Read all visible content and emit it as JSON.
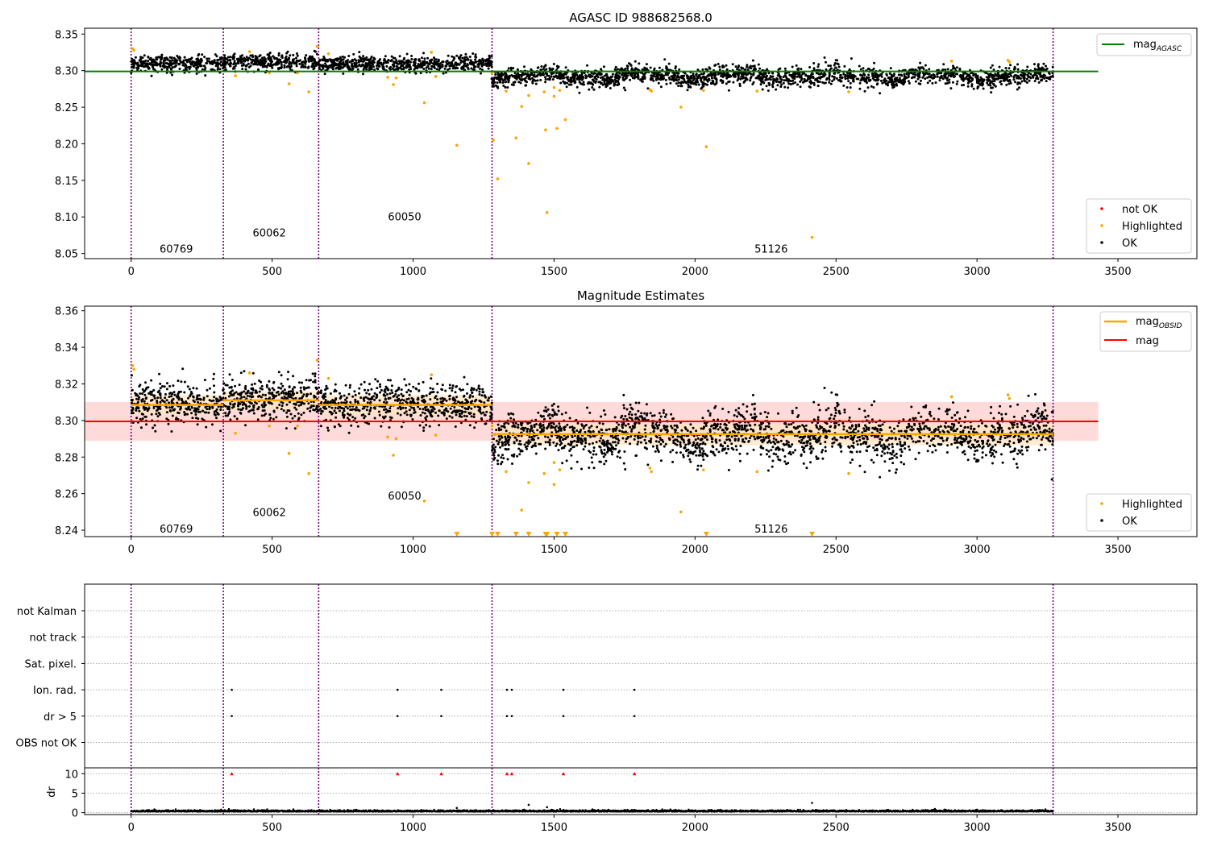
{
  "chart_data": [
    {
      "type": "scatter",
      "title": "AGASC ID 988682568.0",
      "xlim": [
        -165,
        3780
      ],
      "ylim": [
        8.043,
        8.358
      ],
      "xticks": [
        0,
        500,
        1000,
        1500,
        2000,
        2500,
        3000,
        3500
      ],
      "yticks": [
        8.05,
        8.1,
        8.15,
        8.2,
        8.25,
        8.3,
        8.35
      ],
      "obsid_boundaries": [
        0,
        327,
        665,
        1280,
        3270
      ],
      "obsid_labels": [
        {
          "text": "60769",
          "x": 160,
          "y": 8.057
        },
        {
          "text": "60062",
          "x": 490,
          "y": 8.079
        },
        {
          "text": "60050",
          "x": 970,
          "y": 8.101
        },
        {
          "text": "51126",
          "x": 2270,
          "y": 8.057
        }
      ],
      "reference_line": {
        "name": "mag",
        "subscript": "AGASC",
        "value": 8.299,
        "x": [
          -165,
          3430
        ]
      },
      "series": [
        {
          "name": "not OK",
          "color": "#ff0000",
          "points": []
        },
        {
          "name": "Highlighted",
          "color": "#ffa500",
          "points": [
            [
              5,
              8.33
            ],
            [
              10,
              8.328
            ],
            [
              370,
              8.293
            ],
            [
              420,
              8.326
            ],
            [
              490,
              8.297
            ],
            [
              560,
              8.282
            ],
            [
              590,
              8.297
            ],
            [
              630,
              8.271
            ],
            [
              660,
              8.333
            ],
            [
              700,
              8.323
            ],
            [
              910,
              8.291
            ],
            [
              930,
              8.281
            ],
            [
              940,
              8.29
            ],
            [
              1040,
              8.256
            ],
            [
              1065,
              8.325
            ],
            [
              1080,
              8.292
            ],
            [
              1155,
              8.198
            ],
            [
              1280,
              8.297
            ],
            [
              1285,
              8.205
            ],
            [
              1300,
              8.152
            ],
            [
              1330,
              8.272
            ],
            [
              1365,
              8.208
            ],
            [
              1385,
              8.251
            ],
            [
              1410,
              8.266
            ],
            [
              1410,
              8.173
            ],
            [
              1465,
              8.271
            ],
            [
              1470,
              8.219
            ],
            [
              1475,
              8.106
            ],
            [
              1500,
              8.265
            ],
            [
              1500,
              8.277
            ],
            [
              1510,
              8.221
            ],
            [
              1520,
              8.273
            ],
            [
              1540,
              8.233
            ],
            [
              1840,
              8.274
            ],
            [
              1845,
              8.272
            ],
            [
              1950,
              8.25
            ],
            [
              2030,
              8.273
            ],
            [
              2040,
              8.196
            ],
            [
              2220,
              8.272
            ],
            [
              2415,
              8.072
            ],
            [
              2545,
              8.271
            ],
            [
              2910,
              8.313
            ],
            [
              3110,
              8.314
            ],
            [
              3115,
              8.312
            ]
          ]
        },
        {
          "name": "OK",
          "color": "#000000",
          "segments": [
            {
              "x": [
                0,
                327
              ],
              "mean": 8.309,
              "spread": 0.0055
            },
            {
              "x": [
                327,
                665
              ],
              "mean": 8.312,
              "spread": 0.0055
            },
            {
              "x": [
                665,
                1280
              ],
              "mean": 8.309,
              "spread": 0.0055
            },
            {
              "x": [
                1280,
                3270
              ],
              "mean": 8.292,
              "spread": 0.0065
            }
          ]
        }
      ],
      "legend_upper": [
        {
          "label": "mag",
          "subscript": "AGASC",
          "color": "#008000"
        }
      ],
      "legend_lower": [
        {
          "label": "not OK",
          "color": "#ff0000"
        },
        {
          "label": "Highlighted",
          "color": "#ffa500"
        },
        {
          "label": "OK",
          "color": "#000000"
        }
      ]
    },
    {
      "type": "scatter",
      "title": "Magnitude Estimates",
      "xlim": [
        -165,
        3780
      ],
      "ylim": [
        8.2365,
        8.3625
      ],
      "xticks": [
        0,
        500,
        1000,
        1500,
        2000,
        2500,
        3000,
        3500
      ],
      "yticks": [
        8.24,
        8.26,
        8.28,
        8.3,
        8.32,
        8.34,
        8.36
      ],
      "obsid_boundaries": [
        0,
        327,
        665,
        1280,
        3270
      ],
      "obsid_labels": [
        {
          "text": "60769",
          "x": 160,
          "y": 8.241
        },
        {
          "text": "60062",
          "x": 490,
          "y": 8.25
        },
        {
          "text": "60050",
          "x": 970,
          "y": 8.259
        },
        {
          "text": "51126",
          "x": 2270,
          "y": 8.241
        }
      ],
      "mag_line": {
        "name": "mag",
        "color": "#ff0000",
        "value": 8.2995,
        "band": [
          8.2889,
          8.3101
        ],
        "x": [
          -165,
          3430
        ]
      },
      "obsid_mags": [
        {
          "x": [
            0,
            327
          ],
          "value": 8.3085,
          "band": [
            8.303,
            8.314
          ]
        },
        {
          "x": [
            327,
            665
          ],
          "value": 8.311,
          "band": [
            8.306,
            8.316
          ]
        },
        {
          "x": [
            665,
            1280
          ],
          "value": 8.3085,
          "band": [
            8.303,
            8.314
          ]
        },
        {
          "x": [
            1280,
            3270
          ],
          "value": 8.2925,
          "band": [
            8.2865,
            8.2985
          ]
        }
      ],
      "series": [
        {
          "name": "Highlighted",
          "color": "#ffa500",
          "points": [
            [
              5,
              8.33
            ],
            [
              10,
              8.328
            ],
            [
              370,
              8.293
            ],
            [
              420,
              8.326
            ],
            [
              490,
              8.297
            ],
            [
              560,
              8.282
            ],
            [
              590,
              8.297
            ],
            [
              630,
              8.271
            ],
            [
              660,
              8.333
            ],
            [
              700,
              8.323
            ],
            [
              910,
              8.291
            ],
            [
              930,
              8.281
            ],
            [
              940,
              8.29
            ],
            [
              1040,
              8.256
            ],
            [
              1065,
              8.325
            ],
            [
              1080,
              8.292
            ],
            [
              1280,
              8.297
            ],
            [
              1330,
              8.272
            ],
            [
              1385,
              8.251
            ],
            [
              1410,
              8.266
            ],
            [
              1465,
              8.271
            ],
            [
              1500,
              8.265
            ],
            [
              1500,
              8.277
            ],
            [
              1520,
              8.273
            ],
            [
              1840,
              8.274
            ],
            [
              1845,
              8.272
            ],
            [
              1950,
              8.25
            ],
            [
              2030,
              8.273
            ],
            [
              2220,
              8.272
            ],
            [
              2545,
              8.271
            ],
            [
              2910,
              8.313
            ],
            [
              3110,
              8.314
            ],
            [
              3115,
              8.312
            ]
          ]
        },
        {
          "name": "OK",
          "color": "#000000",
          "segments": [
            {
              "x": [
                0,
                327
              ],
              "mean": 8.309,
              "spread": 0.0055
            },
            {
              "x": [
                327,
                665
              ],
              "mean": 8.312,
              "spread": 0.0055
            },
            {
              "x": [
                665,
                1280
              ],
              "mean": 8.309,
              "spread": 0.0055
            },
            {
              "x": [
                1280,
                3270
              ],
              "mean": 8.292,
              "spread": 0.0065
            }
          ]
        }
      ],
      "off_scale_markers": [
        1155,
        1280,
        1300,
        1365,
        1410,
        1470,
        1475,
        1510,
        1540,
        2040,
        2415
      ],
      "legend_upper": [
        {
          "label": "mag",
          "subscript": "OBSID",
          "color": "#ffa500"
        },
        {
          "label": "mag",
          "color": "#ff0000"
        }
      ],
      "legend_lower": [
        {
          "label": "Highlighted",
          "color": "#ffa500"
        },
        {
          "label": "OK",
          "color": "#000000"
        }
      ]
    },
    {
      "type": "scatter",
      "xlim": [
        -165,
        3780
      ],
      "xticks": [
        0,
        500,
        1000,
        1500,
        2000,
        2500,
        3000,
        3500
      ],
      "flag_rows": [
        "not Kalman",
        "not track",
        "Sat. pixel.",
        "Ion. rad.",
        "dr > 5",
        "OBS not OK"
      ],
      "flags": {
        "Ion. rad.": [
          357,
          945,
          1100,
          1333,
          1350,
          1533,
          1785
        ],
        "dr > 5": [
          357,
          945,
          1100,
          1333,
          1350,
          1533,
          1785
        ]
      },
      "dr": {
        "ylabel": "dr",
        "ylim": [
          -0.5,
          11.5
        ],
        "yticks": [
          0,
          5,
          10
        ],
        "threshold": 5,
        "baseline": 0.25,
        "high_markers": {
          "color": "#ff0000",
          "x": [
            357,
            945,
            1100,
            1333,
            1350,
            1533,
            1785
          ],
          "value": 10
        },
        "outliers": [
          [
            1155,
            1.2
          ],
          [
            1410,
            2.0
          ],
          [
            1475,
            1.4
          ],
          [
            2415,
            2.5
          ]
        ]
      }
    }
  ]
}
